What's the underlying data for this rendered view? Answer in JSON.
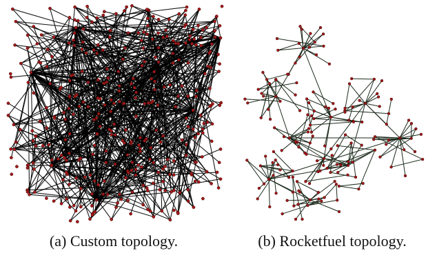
{
  "figure": {
    "subfigures": [
      {
        "caption": "(a) Custom topology."
      },
      {
        "caption": "(b) Rocketfuel topology."
      }
    ]
  },
  "colors": {
    "edge_a": "#000000",
    "edge_b": "#1c2a1c",
    "node_fill": "#a31919",
    "node_stroke": "#3a0000"
  }
}
